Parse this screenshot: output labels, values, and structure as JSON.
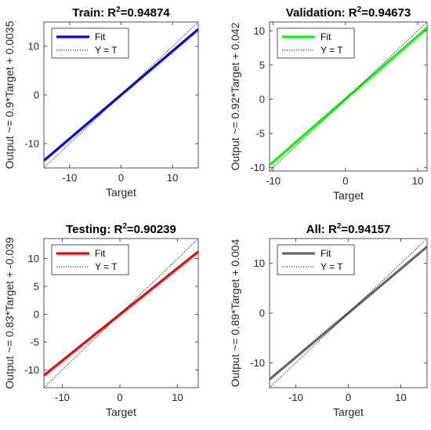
{
  "chart_data": [
    {
      "type": "line",
      "title_main": "Train: R",
      "title_sup": "2",
      "title_value": "=0.94874",
      "xlabel": "Target",
      "ylabel": "Output ~= 0.9*Target + 0.0035",
      "xlim": [
        -15,
        15
      ],
      "ylim": [
        -15,
        15
      ],
      "xticks": [
        -10,
        0,
        10
      ],
      "yticks": [
        -10,
        0,
        10
      ],
      "fit_color": "#0000ff",
      "series": [
        {
          "name": "Fit",
          "style": "solid",
          "x": [
            -15,
            15
          ],
          "y": [
            -13.4965,
            13.5035
          ]
        },
        {
          "name": "Y = T",
          "style": "dotted",
          "x": [
            -15,
            15
          ],
          "y": [
            -15,
            15
          ]
        }
      ],
      "legend_position": "top-left"
    },
    {
      "type": "line",
      "title_main": "Validation: R",
      "title_sup": "2",
      "title_value": "=0.94673",
      "xlabel": "Target",
      "ylabel": "Output ~= 0.92*Target + 0.042",
      "xlim": [
        -10.5,
        11.3
      ],
      "ylim": [
        -10.5,
        11.3
      ],
      "xticks": [
        -10,
        0,
        10
      ],
      "yticks": [
        -10,
        -5,
        0,
        5,
        10
      ],
      "fit_color": "#00ff00",
      "series": [
        {
          "name": "Fit",
          "style": "solid",
          "x": [
            -10.5,
            11.3
          ],
          "y": [
            -9.618,
            10.438
          ]
        },
        {
          "name": "Y = T",
          "style": "dotted",
          "x": [
            -10.5,
            11.3
          ],
          "y": [
            -10.5,
            11.3
          ]
        }
      ],
      "legend_position": "top-left"
    },
    {
      "type": "line",
      "title_main": "Testing: R",
      "title_sup": "2",
      "title_value": "=0.90239",
      "xlabel": "Target",
      "ylabel": "Output ~= 0.83*Target + -0.039",
      "xlim": [
        -13.2,
        13.6
      ],
      "ylim": [
        -13.2,
        13.6
      ],
      "xticks": [
        -10,
        0,
        10
      ],
      "yticks": [
        -10,
        -5,
        0,
        5,
        10
      ],
      "fit_color": "#ff0000",
      "series": [
        {
          "name": "Fit",
          "style": "solid",
          "x": [
            -13.2,
            13.6
          ],
          "y": [
            -10.995,
            11.249
          ]
        },
        {
          "name": "Y = T",
          "style": "dotted",
          "x": [
            -13.2,
            13.6
          ],
          "y": [
            -13.2,
            13.6
          ]
        }
      ],
      "legend_position": "top-left"
    },
    {
      "type": "line",
      "title_main": "All: R",
      "title_sup": "2",
      "title_value": "=0.94157",
      "xlabel": "Target",
      "ylabel": "Output ~= 0.89*Target + 0.004",
      "xlim": [
        -15,
        15
      ],
      "ylim": [
        -15,
        15
      ],
      "xticks": [
        -10,
        0,
        10
      ],
      "yticks": [
        -10,
        0,
        10
      ],
      "fit_color": "#666666",
      "series": [
        {
          "name": "Fit",
          "style": "solid",
          "x": [
            -15,
            15
          ],
          "y": [
            -13.346,
            13.354
          ]
        },
        {
          "name": "Y = T",
          "style": "dotted",
          "x": [
            -15,
            15
          ],
          "y": [
            -15,
            15
          ]
        }
      ],
      "legend_position": "top-left"
    }
  ]
}
